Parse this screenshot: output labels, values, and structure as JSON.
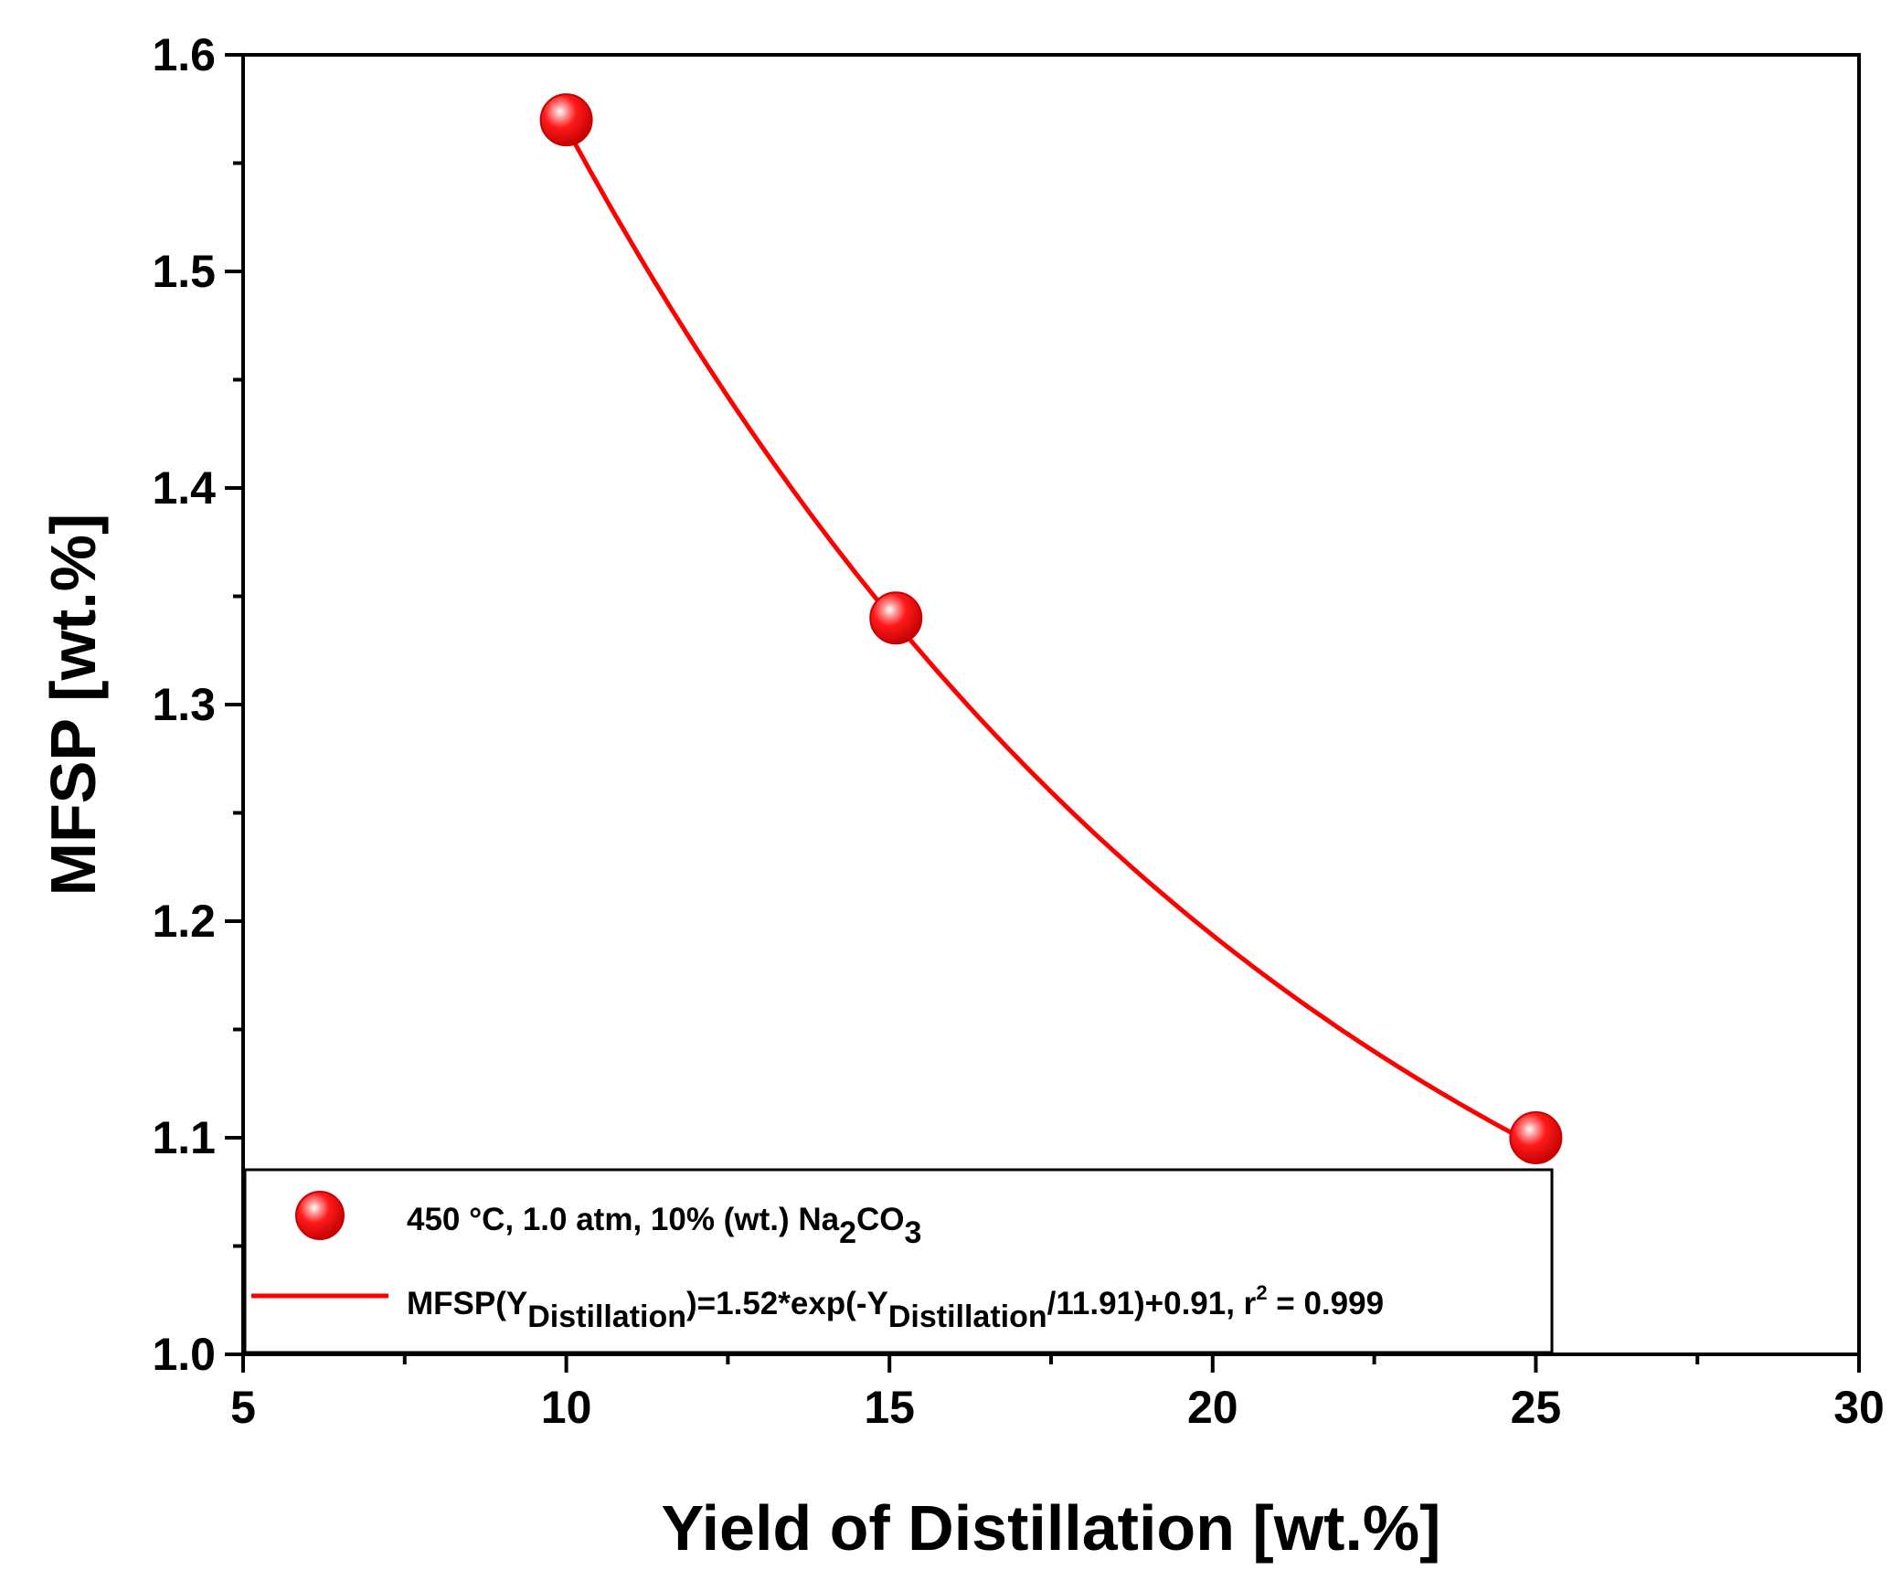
{
  "chart_data": {
    "type": "scatter",
    "title": "",
    "xlabel": "Yield of Distillation [wt.%]",
    "ylabel": "MFSP [wt.%]",
    "xlim": [
      5,
      30
    ],
    "ylim": [
      1.0,
      1.6
    ],
    "x_major_ticks": [
      5,
      10,
      15,
      20,
      25,
      30
    ],
    "x_tick_labels": [
      "5",
      "10",
      "15",
      "20",
      "25",
      "30"
    ],
    "x_minor_ticks": [
      7.5,
      12.5,
      17.5,
      22.5,
      27.5
    ],
    "y_major_ticks": [
      1.0,
      1.1,
      1.2,
      1.3,
      1.4,
      1.5,
      1.6
    ],
    "y_tick_labels": [
      "1.0",
      "1.1",
      "1.2",
      "1.3",
      "1.4",
      "1.5",
      "1.6"
    ],
    "y_minor_ticks": [
      1.05,
      1.15,
      1.25,
      1.35,
      1.45,
      1.55
    ],
    "grid": false,
    "series": [
      {
        "name": "450 °C, 1.0 atm, 10% (wt.) Na2CO3",
        "kind": "scatter",
        "color": "#ff0000",
        "x": [
          10,
          15.1,
          25
        ],
        "y": [
          1.57,
          1.34,
          1.1
        ]
      },
      {
        "name": "MFSP(Y_Distillation)=1.52*exp(-Y_Distillation/11.91)+0.91, r^2 = 0.999",
        "kind": "fit-line",
        "color": "#ff0000",
        "fit": {
          "a": 1.52,
          "b": 11.91,
          "c": 0.91
        },
        "x_range": [
          10,
          25
        ]
      }
    ],
    "legend": {
      "position": "bottom-left",
      "entry1": {
        "pre": "450 °C, 1.0 atm, 10% (wt.) Na",
        "sub1": "2",
        "mid": "CO",
        "sub2": "3"
      },
      "entry2": {
        "pre": "MFSP(Y",
        "sub1": "Distillation",
        "mid": ")=1.52*exp(-Y",
        "sub2": "Distillation",
        "post": "/11.91)+0.91, r",
        "sup": "2",
        "tail": " = 0.999"
      }
    }
  }
}
